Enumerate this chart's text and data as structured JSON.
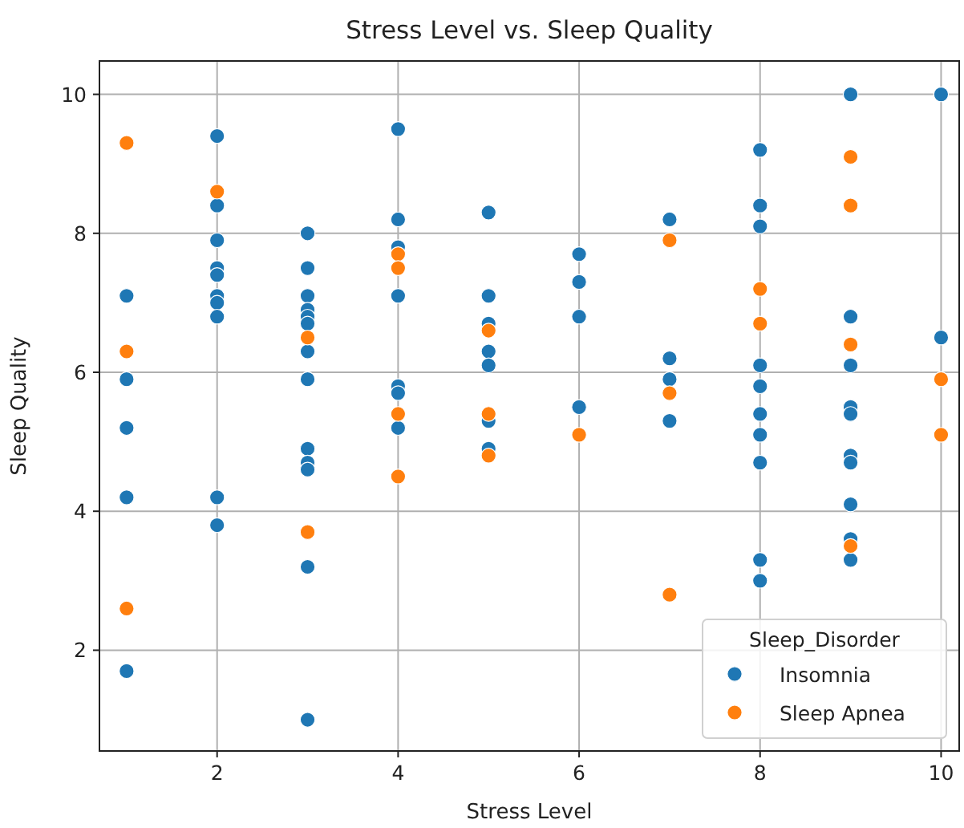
{
  "chart_data": {
    "type": "scatter",
    "title": "Stress Level vs. Sleep Quality",
    "xlabel": "Stress Level",
    "ylabel": "Sleep Quality",
    "legend_title": "Sleep_Disorder",
    "legend": "bottom right",
    "grid": true,
    "marker": "circle",
    "xlim": [
      0.7,
      10.2
    ],
    "xticks": [
      2,
      4,
      6,
      8,
      10
    ],
    "ylim": [
      0.55,
      10.48
    ],
    "yticks": [
      2,
      4,
      6,
      8,
      10
    ],
    "series": [
      {
        "name": "Insomnia",
        "color": "#1f77b4",
        "x": [
          1,
          1,
          1,
          1,
          1,
          2,
          2,
          2,
          2,
          2,
          2,
          2,
          2,
          2,
          2,
          3,
          3,
          3,
          3,
          3,
          3,
          3,
          3,
          3,
          3,
          3,
          3,
          3,
          4,
          4,
          4,
          4,
          4,
          4,
          4,
          5,
          5,
          5,
          5,
          5,
          5,
          5,
          6,
          6,
          6,
          6,
          7,
          7,
          7,
          7,
          8,
          8,
          8,
          8,
          8,
          8,
          8,
          8,
          8,
          8,
          9,
          9,
          9,
          9,
          9,
          9,
          9,
          9,
          9,
          9,
          10,
          10
        ],
        "values": [
          7.1,
          5.9,
          5.2,
          4.2,
          1.7,
          9.4,
          8.4,
          7.9,
          7.5,
          7.4,
          7.1,
          7.0,
          6.8,
          4.2,
          3.8,
          8.0,
          7.5,
          7.1,
          6.9,
          6.8,
          6.7,
          6.3,
          5.9,
          4.9,
          4.7,
          4.6,
          3.2,
          1.0,
          9.5,
          8.2,
          7.8,
          7.1,
          5.8,
          5.7,
          5.2,
          8.3,
          7.1,
          6.7,
          6.3,
          6.1,
          5.3,
          4.9,
          7.7,
          7.3,
          6.8,
          5.5,
          8.2,
          6.2,
          5.9,
          5.3,
          9.2,
          8.4,
          8.1,
          6.1,
          5.8,
          5.4,
          5.1,
          4.7,
          3.3,
          3.0,
          10.0,
          6.8,
          6.1,
          5.5,
          5.4,
          4.8,
          4.7,
          4.1,
          3.6,
          3.3,
          10.0,
          6.5
        ]
      },
      {
        "name": "Sleep Apnea",
        "color": "#ff7f0e",
        "x": [
          1,
          1,
          1,
          2,
          3,
          3,
          4,
          4,
          4,
          4,
          5,
          5,
          5,
          6,
          7,
          7,
          7,
          8,
          8,
          9,
          9,
          9,
          9,
          10,
          10
        ],
        "values": [
          9.3,
          6.3,
          2.6,
          8.6,
          6.5,
          3.7,
          7.7,
          7.5,
          5.4,
          4.5,
          6.6,
          5.4,
          4.8,
          5.1,
          7.9,
          5.7,
          2.8,
          7.2,
          6.7,
          9.1,
          8.4,
          6.4,
          3.5,
          5.9,
          5.1
        ]
      }
    ]
  }
}
